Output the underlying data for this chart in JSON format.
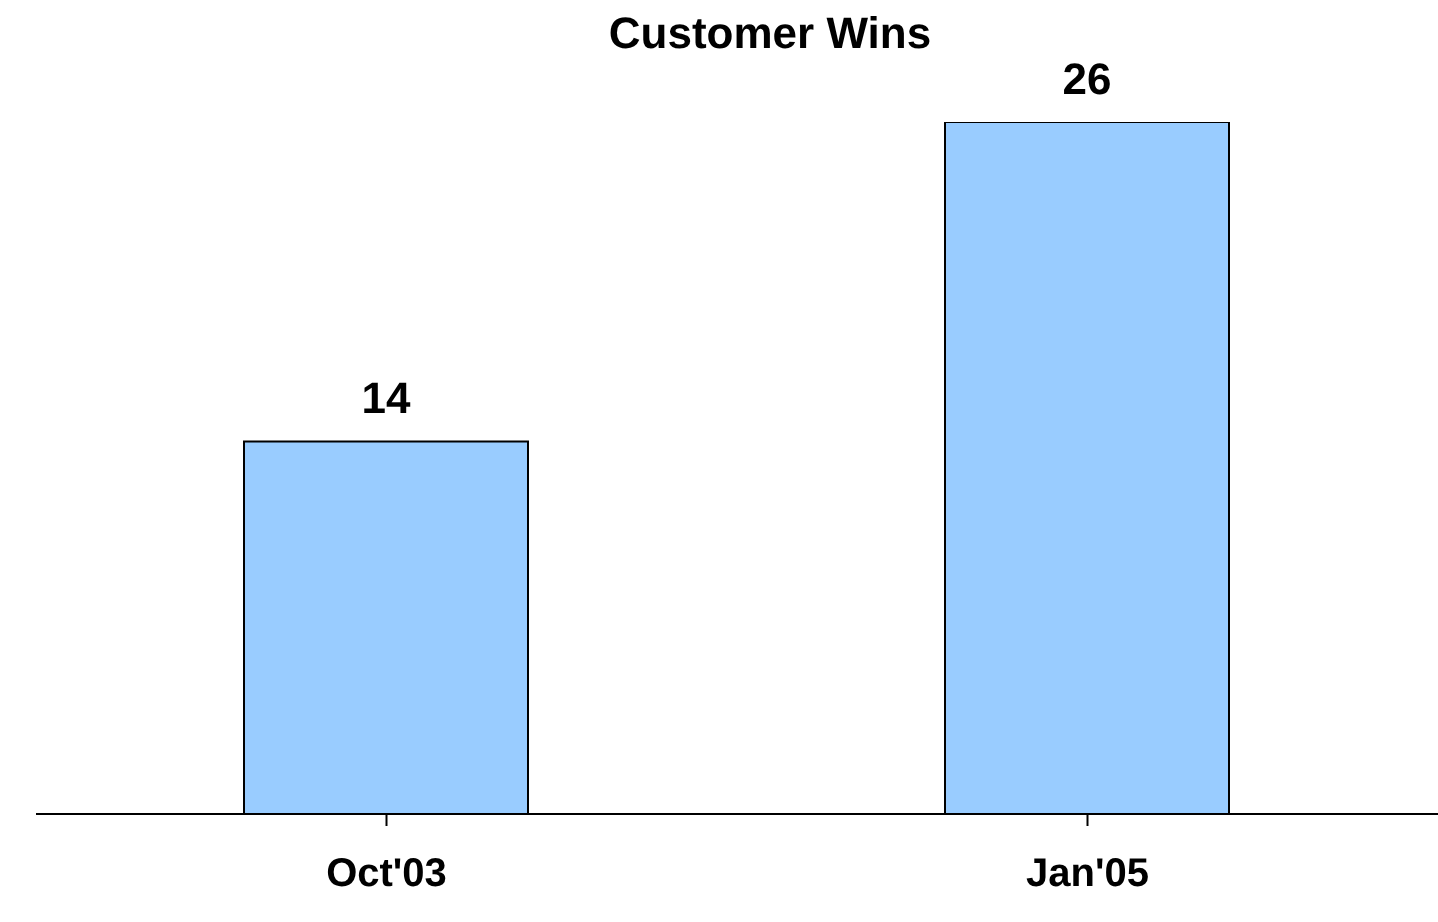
{
  "chart_data": {
    "type": "bar",
    "title": "Customer Wins",
    "categories": [
      "Oct'03",
      "Jan'05"
    ],
    "values": [
      14,
      26
    ],
    "color": "#99ccff",
    "data_labels": true
  }
}
